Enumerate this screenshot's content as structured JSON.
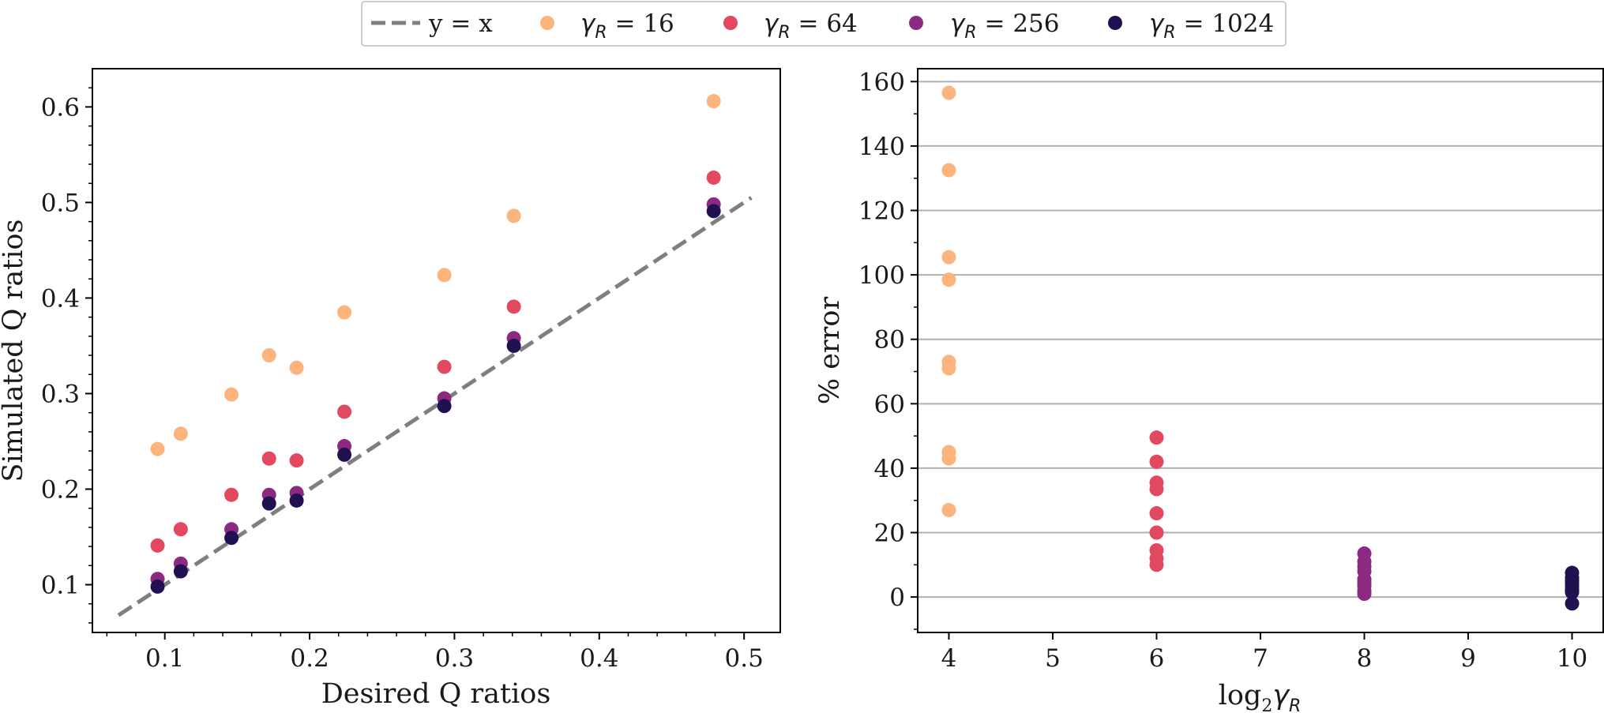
{
  "chart_data": [
    {
      "type": "scatter",
      "title": "",
      "xlabel": "Desired Q ratios",
      "ylabel": "Simulated Q ratios",
      "xlim": [
        0.05,
        0.525
      ],
      "ylim": [
        0.05,
        0.64
      ],
      "xticks": [
        "0.1",
        "0.2",
        "0.3",
        "0.4",
        "0.5"
      ],
      "yticks": [
        "0.1",
        "0.2",
        "0.3",
        "0.4",
        "0.5",
        "0.6"
      ],
      "grid": false,
      "reference_line": {
        "label": "y = x",
        "x": [
          0.068,
          0.505
        ],
        "y": [
          0.068,
          0.505
        ]
      },
      "x": [
        0.095,
        0.111,
        0.146,
        0.172,
        0.191,
        0.224,
        0.293,
        0.341,
        0.479
      ],
      "series": [
        {
          "name": "γR = 16",
          "values": [
            0.242,
            0.258,
            0.299,
            0.34,
            0.327,
            0.385,
            0.424,
            0.486,
            0.606
          ]
        },
        {
          "name": "γR = 64",
          "values": [
            0.141,
            0.158,
            0.194,
            0.232,
            0.23,
            0.281,
            0.328,
            0.391,
            0.526
          ]
        },
        {
          "name": "γR = 256",
          "values": [
            0.106,
            0.122,
            0.158,
            0.194,
            0.196,
            0.245,
            0.295,
            0.358,
            0.498
          ]
        },
        {
          "name": "γR = 1024",
          "values": [
            0.098,
            0.114,
            0.149,
            0.185,
            0.188,
            0.236,
            0.287,
            0.35,
            0.491
          ]
        }
      ]
    },
    {
      "type": "scatter",
      "title": "",
      "xlabel": "log2γR",
      "ylabel": "% error",
      "xlim": [
        3.7,
        10.3
      ],
      "ylim": [
        -11,
        164
      ],
      "xticks": [
        "4",
        "5",
        "6",
        "7",
        "8",
        "9",
        "10"
      ],
      "yticks": [
        "0",
        "20",
        "40",
        "60",
        "80",
        "100",
        "120",
        "140",
        "160"
      ],
      "grid": "horizontal",
      "series": [
        {
          "name": "γR = 16",
          "x": 4,
          "values": [
            156.5,
            132.5,
            105.5,
            98.5,
            73,
            71,
            45,
            43,
            27
          ]
        },
        {
          "name": "γR = 64",
          "x": 6,
          "values": [
            49.5,
            42,
            35.5,
            33.5,
            26,
            20,
            14.5,
            12,
            10
          ]
        },
        {
          "name": "γR = 256",
          "x": 8,
          "values": [
            13.5,
            11,
            9.5,
            8,
            5.5,
            4.5,
            3.5,
            2,
            1
          ]
        },
        {
          "name": "γR = 1024",
          "x": 10,
          "values": [
            7.5,
            6,
            5,
            4.5,
            3.5,
            2.5,
            2,
            1.5,
            -2
          ]
        }
      ]
    }
  ],
  "legend": {
    "placement": "top-center",
    "entries": [
      {
        "label": "y = x",
        "kind": "dashed-line",
        "color": "#7f7f7f"
      },
      {
        "label_var": "γ",
        "label_sub": "R",
        "label_rest": " = 16",
        "kind": "marker",
        "color": "#fcb47c"
      },
      {
        "label_var": "γ",
        "label_sub": "R",
        "label_rest": " = 64",
        "kind": "marker",
        "color": "#e2485f"
      },
      {
        "label_var": "γ",
        "label_sub": "R",
        "label_rest": " = 256",
        "kind": "marker",
        "color": "#8c2981"
      },
      {
        "label_var": "γ",
        "label_sub": "R",
        "label_rest": " = 1024",
        "kind": "marker",
        "color": "#221150"
      }
    ]
  },
  "colors": {
    "series": [
      "#fcb47c",
      "#e2485f",
      "#8c2981",
      "#221150"
    ],
    "reference": "#7f7f7f",
    "grid": "#b0b0b0"
  },
  "right_xlabel_parts": {
    "main": "log",
    "base": "2",
    "var": "γ",
    "sub": "R"
  }
}
